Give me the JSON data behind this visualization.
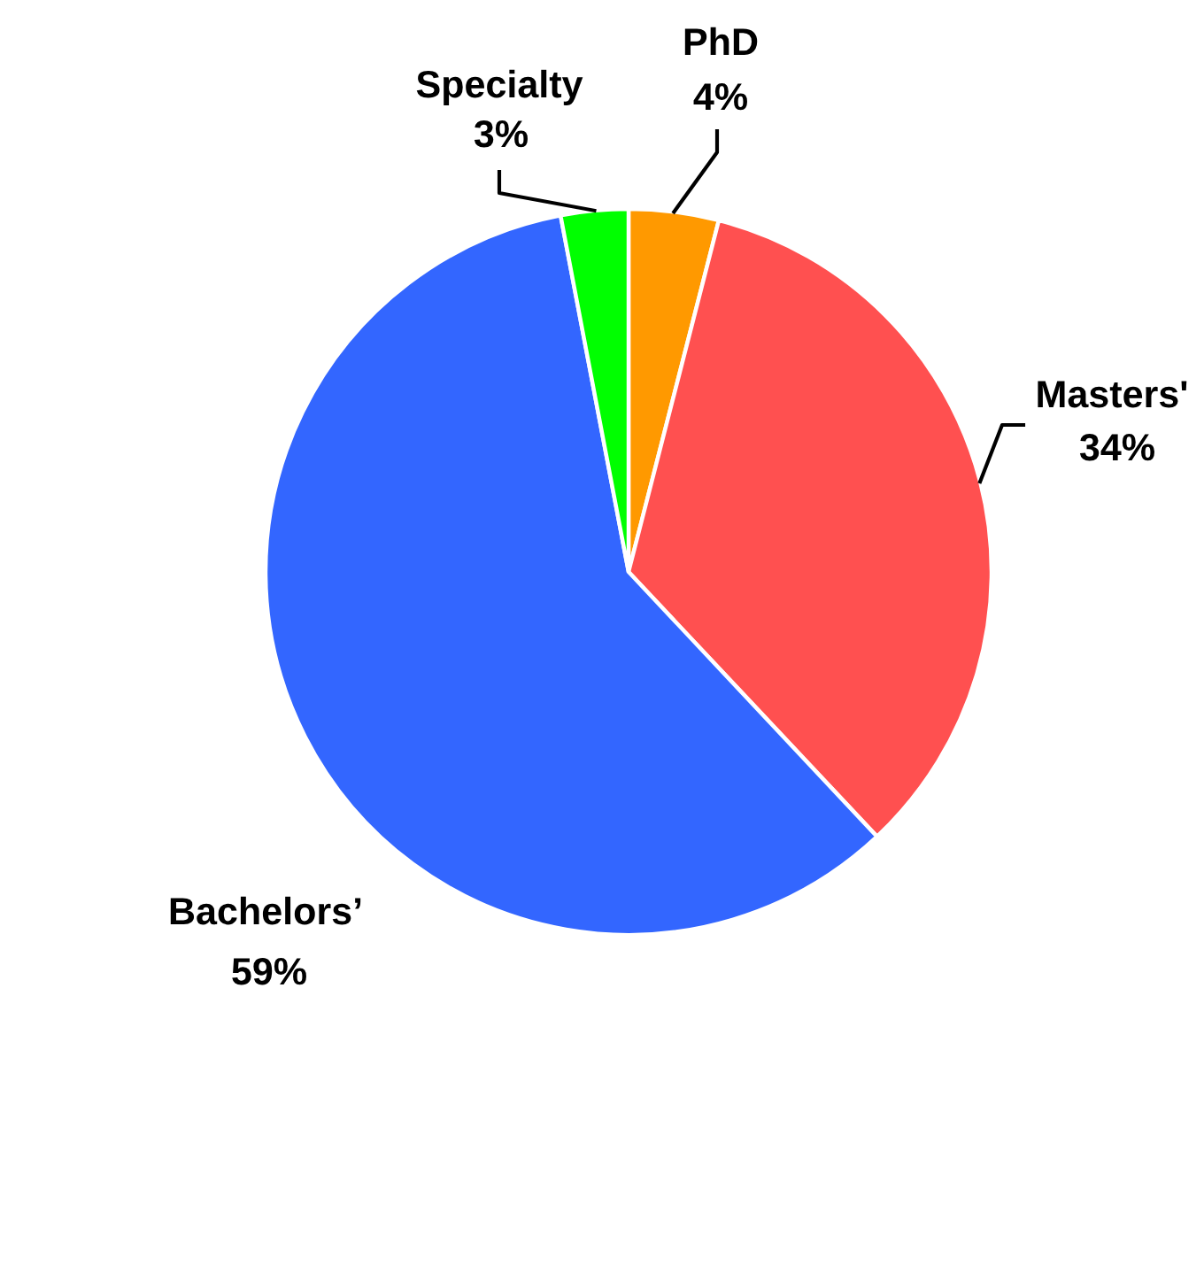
{
  "chart_data": {
    "type": "pie",
    "categories": [
      "PhD",
      "Masters'",
      "Bachelors’",
      "Specialty"
    ],
    "values": [
      4,
      34,
      59,
      3
    ],
    "colors": [
      "#ff9900",
      "#ff5050",
      "#3366ff",
      "#00ff00"
    ],
    "value_labels": [
      "4%",
      "34%",
      "59%",
      "3%"
    ]
  }
}
